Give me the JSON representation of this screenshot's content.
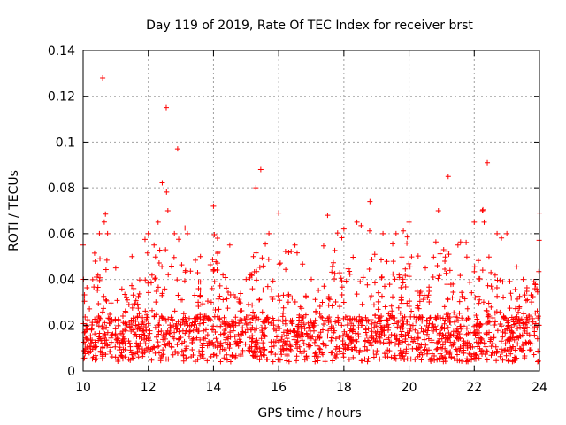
{
  "chart_data": {
    "type": "scatter",
    "title": "Day 119 of 2019, Rate Of TEC Index for receiver brst",
    "xlabel": "GPS time / hours",
    "ylabel": "ROTI / TECUs",
    "xlim": [
      10,
      24
    ],
    "ylim": [
      0,
      0.14
    ],
    "xticks": [
      10,
      12,
      14,
      16,
      18,
      20,
      22,
      24
    ],
    "yticks": [
      0,
      0.02,
      0.04,
      0.06,
      0.08,
      0.1,
      0.12,
      0.14
    ],
    "grid": true,
    "marker": "+",
    "series": [
      {
        "name": "brst",
        "color": "#ff0000",
        "envelope_x": [
          10.0,
          10.5,
          10.6,
          10.75,
          11.0,
          11.5,
          12.0,
          12.3,
          12.55,
          12.6,
          12.8,
          12.9,
          13.2,
          13.6,
          14.0,
          14.5,
          15.0,
          15.3,
          15.45,
          15.7,
          16.0,
          16.5,
          17.0,
          17.5,
          18.0,
          18.4,
          18.8,
          19.2,
          19.6,
          20.0,
          20.5,
          20.9,
          21.2,
          21.5,
          22.0,
          22.25,
          22.4,
          22.7,
          23.0,
          23.5,
          24.0
        ],
        "envelope_y": [
          0.055,
          0.06,
          0.128,
          0.06,
          0.045,
          0.05,
          0.06,
          0.065,
          0.115,
          0.07,
          0.06,
          0.097,
          0.06,
          0.05,
          0.072,
          0.055,
          0.04,
          0.08,
          0.088,
          0.06,
          0.069,
          0.055,
          0.04,
          0.068,
          0.062,
          0.065,
          0.074,
          0.06,
          0.06,
          0.065,
          0.045,
          0.07,
          0.085,
          0.055,
          0.065,
          0.07,
          0.091,
          0.06,
          0.06,
          0.04,
          0.069
        ],
        "baseline_median": 0.012
      }
    ]
  }
}
